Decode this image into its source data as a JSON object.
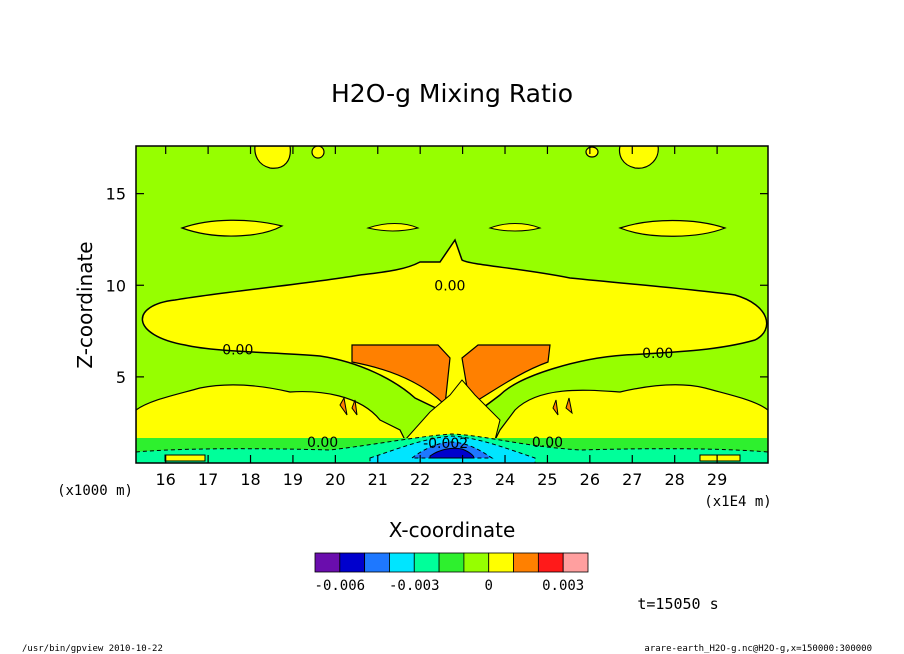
{
  "chart_data": {
    "type": "contour",
    "title": "H2O-g Mixing Ratio",
    "xlabel": "X-coordinate",
    "ylabel": "Z-coordinate",
    "x_unit_label": "(x1E4 m)",
    "y_unit_label": "(x1000 m)",
    "xlim": [
      15.3,
      30.2
    ],
    "ylim": [
      0.3,
      17.6
    ],
    "x_ticks": [
      16,
      17,
      18,
      19,
      20,
      21,
      22,
      23,
      24,
      25,
      26,
      27,
      28,
      29
    ],
    "y_ticks": [
      5,
      10,
      15
    ],
    "contour_labels": [
      {
        "text": "0.00",
        "x": 22.7,
        "z": 10.0
      },
      {
        "text": "0.00",
        "x": 17.7,
        "z": 6.5
      },
      {
        "text": "0.00",
        "x": 27.6,
        "z": 6.3
      },
      {
        "text": "0.00",
        "x": 19.7,
        "z": 1.45
      },
      {
        "text": "0.00",
        "x": 25.0,
        "z": 1.45
      },
      {
        "text": "-0.002",
        "x": 22.6,
        "z": 1.4
      }
    ],
    "colorbar": {
      "colors": [
        "#6a0dad",
        "#0000cd",
        "#1e78ff",
        "#00e5ff",
        "#00ff9a",
        "#2ef02e",
        "#96ff00",
        "#ffff00",
        "#ff8000",
        "#ff1a1a",
        "#ff9f9f"
      ],
      "tick_labels": [
        "-0.006",
        "-0.003",
        "0",
        "0.003"
      ]
    },
    "time_label": "t=15050 s"
  },
  "footer": {
    "left": "/usr/bin/gpview   2010-10-22",
    "right": "arare-earth_H2O-g.nc@H2O-g,x=150000:300000"
  }
}
